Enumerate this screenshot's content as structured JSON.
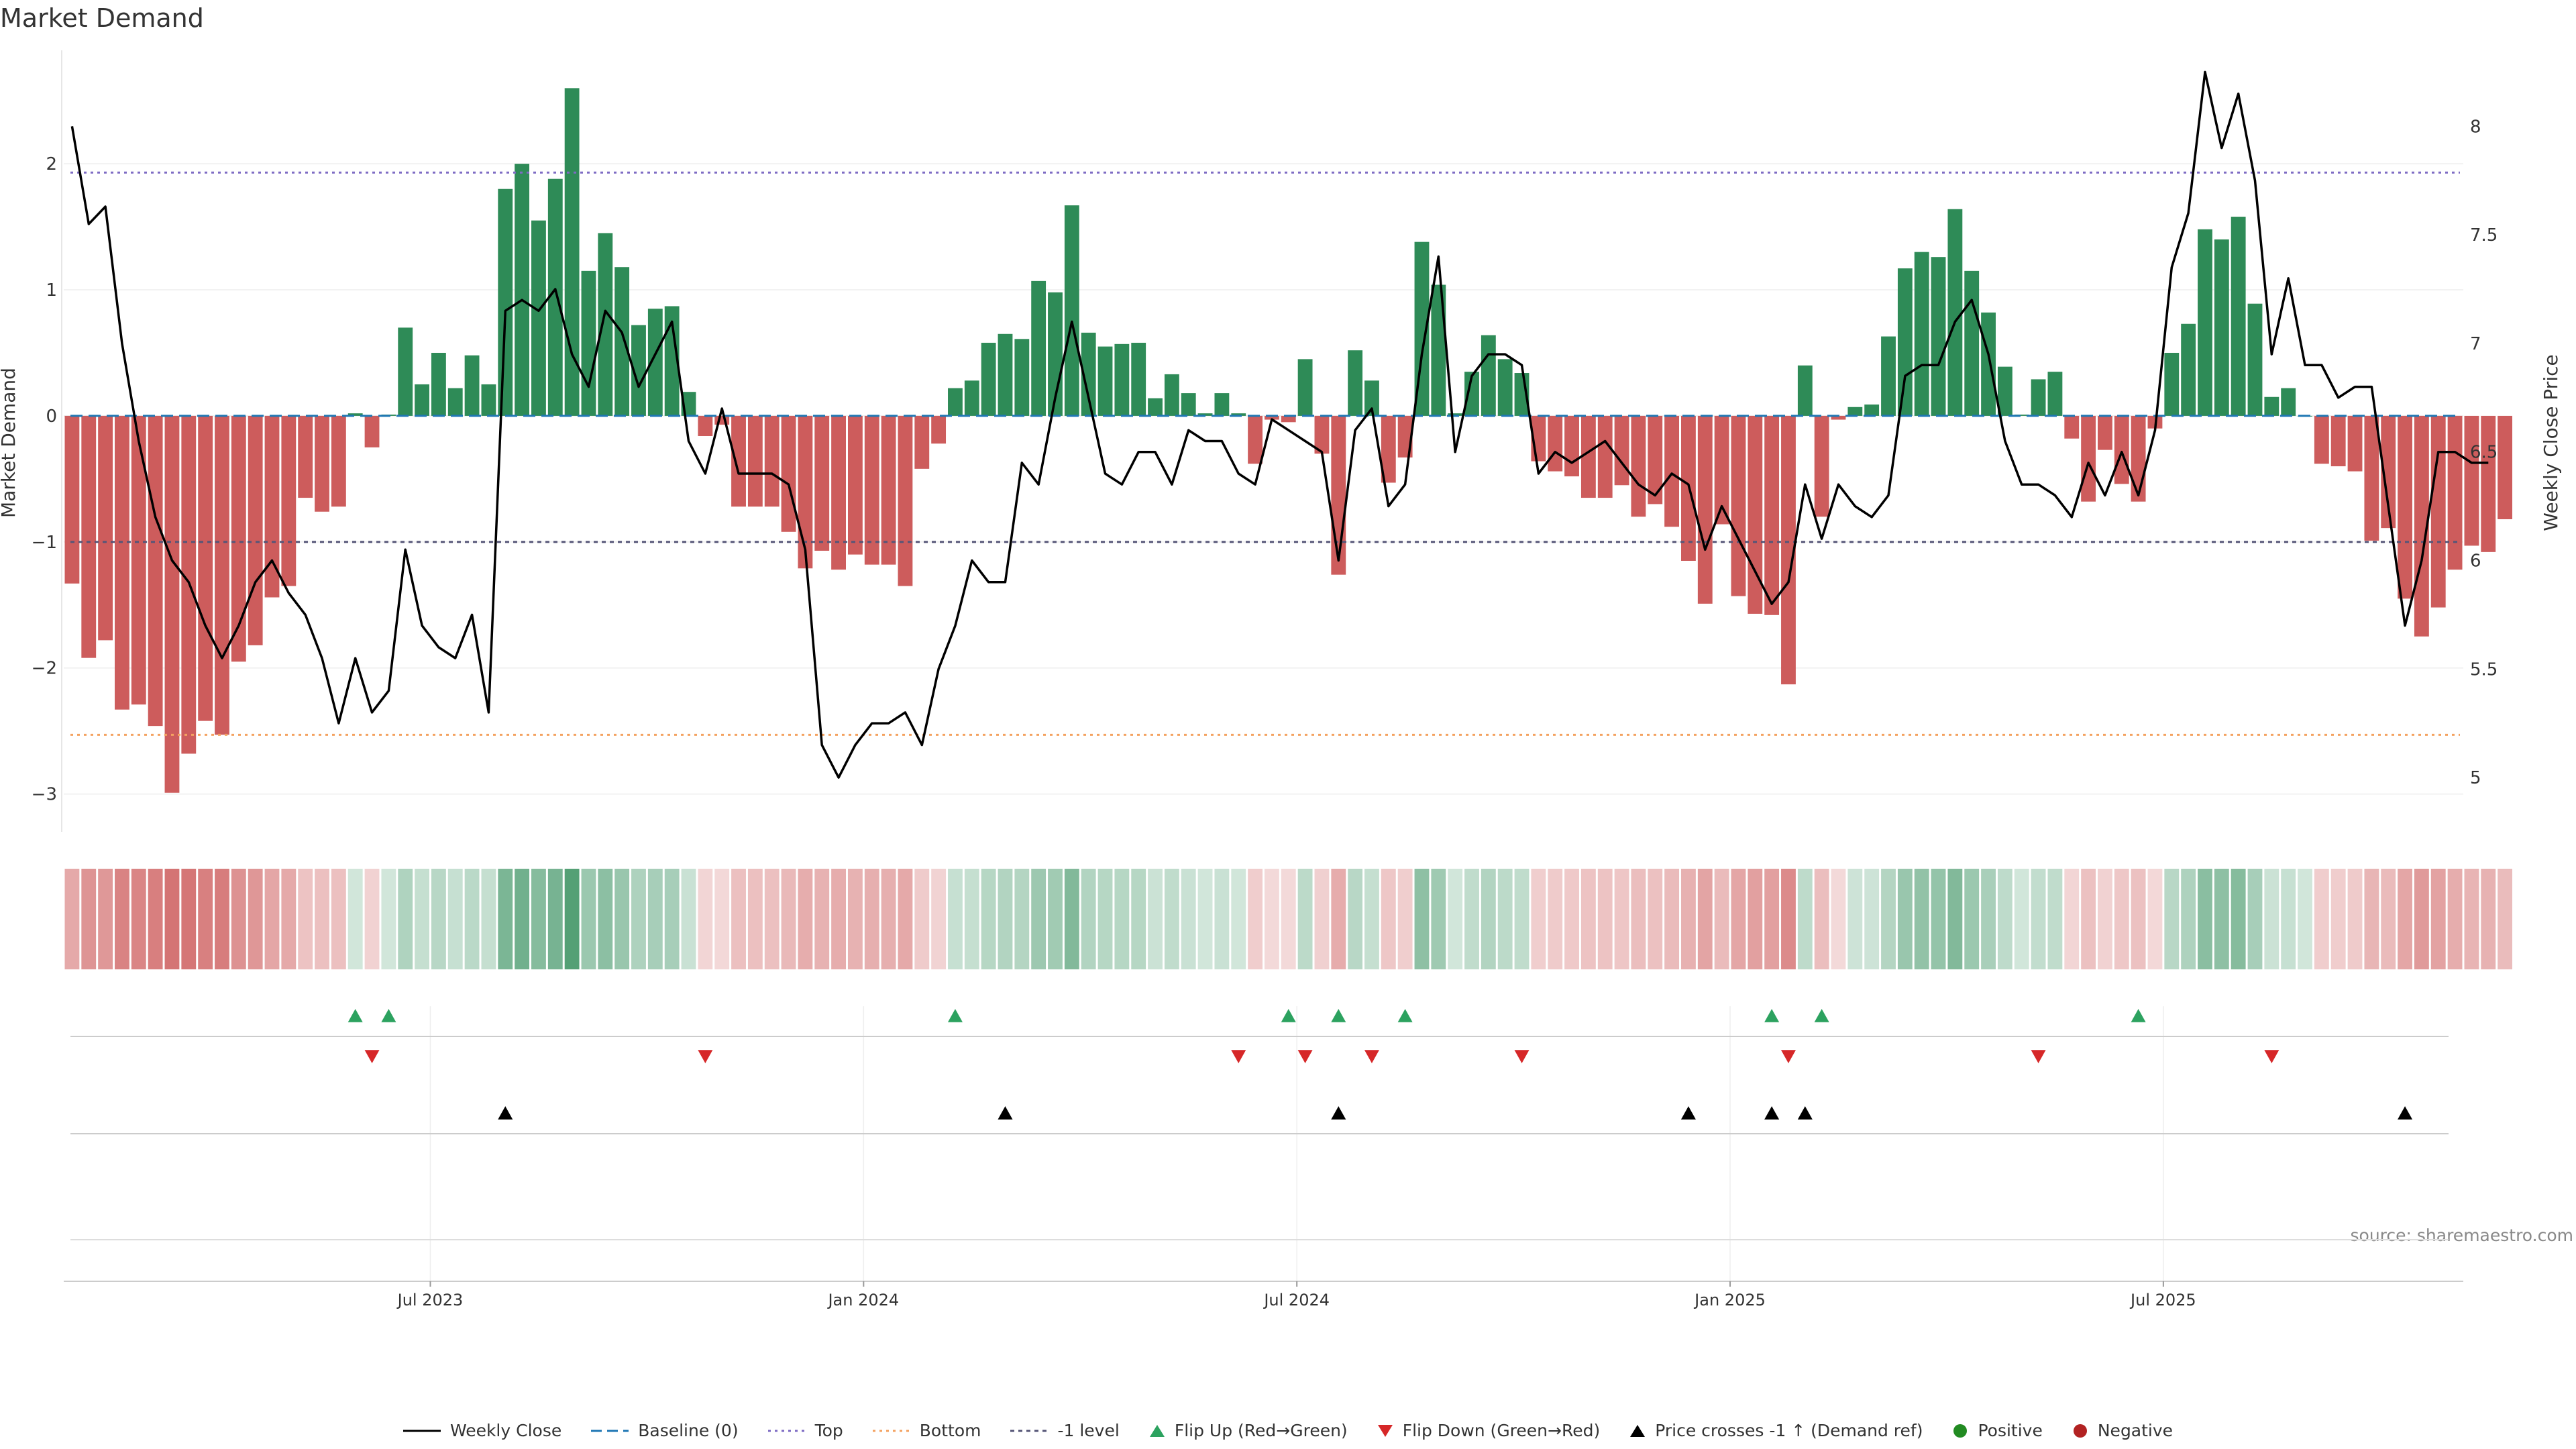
{
  "title": "Market Demand",
  "source": "source: sharemaestro.com",
  "colors": {
    "positive": "#2e8b57",
    "negative": "#cd5c5c",
    "price": "#000000",
    "top": "#7e6bc4",
    "bottom": "#f4a261",
    "minus1": "#555577",
    "baseline": "#1f77b4",
    "flip_up": "#2ca25f",
    "flip_down": "#d62728",
    "cross": "#000000"
  },
  "chart_data": {
    "type": "bar",
    "title": "Market Demand",
    "ylabel": "Market Demand",
    "y2label": "Weekly Close Price",
    "ylim": [
      -3.3,
      2.9
    ],
    "y2lim": [
      4.75,
      8.35
    ],
    "yticks": [
      -3,
      -2,
      -1,
      0,
      1,
      2
    ],
    "yticklabels": [
      "−3",
      "−2",
      "−1",
      "0",
      "1",
      "2"
    ],
    "y2ticks": [
      5,
      5.5,
      6,
      6.5,
      7,
      7.5,
      8
    ],
    "y2ticklabels": [
      "5",
      "5.5",
      "6",
      "6.5",
      "7",
      "7.5",
      "8"
    ],
    "x_tick_weeks": [
      22,
      48,
      74,
      100,
      126
    ],
    "x_tick_labels": [
      "Jul 2023",
      "Jan 2024",
      "Jul 2024",
      "Jan 2025",
      "Jul 2025"
    ],
    "weeks": 144,
    "levels": {
      "top": 1.93,
      "bottom": -2.53,
      "minus_one": -1.0,
      "baseline": 0
    },
    "demand": [
      -1.33,
      -1.92,
      -1.78,
      -2.33,
      -2.29,
      -2.46,
      -2.99,
      -2.68,
      -2.42,
      -2.53,
      -1.95,
      -1.82,
      -1.44,
      -1.35,
      -0.65,
      -0.76,
      -0.72,
      0.02,
      -0.25,
      0.01,
      0.7,
      0.25,
      0.5,
      0.22,
      0.48,
      0.25,
      1.8,
      2.0,
      1.55,
      1.88,
      2.6,
      1.15,
      1.45,
      1.18,
      0.72,
      0.85,
      0.87,
      0.19,
      -0.16,
      -0.07,
      -0.72,
      -0.72,
      -0.72,
      -0.92,
      -1.21,
      -1.07,
      -1.22,
      -1.1,
      -1.18,
      -1.18,
      -1.35,
      -0.42,
      -0.22,
      0.22,
      0.28,
      0.58,
      0.65,
      0.61,
      1.07,
      0.98,
      1.67,
      0.66,
      0.55,
      0.57,
      0.58,
      0.14,
      0.33,
      0.18,
      0.02,
      0.18,
      0.02,
      -0.38,
      -0.03,
      -0.05,
      0.45,
      -0.3,
      -1.26,
      0.52,
      0.28,
      -0.53,
      -0.33,
      1.38,
      1.04,
      0.02,
      0.35,
      0.64,
      0.45,
      0.34,
      -0.36,
      -0.44,
      -0.48,
      -0.65,
      -0.65,
      -0.55,
      -0.8,
      -0.7,
      -0.88,
      -1.15,
      -1.49,
      -0.86,
      -1.43,
      -1.57,
      -1.58,
      -2.13,
      0.4,
      -0.8,
      -0.03,
      0.07,
      0.09,
      0.63,
      1.17,
      1.3,
      1.26,
      1.64,
      1.15,
      0.82,
      0.39,
      0.01,
      0.29,
      0.35,
      -0.18,
      -0.68,
      -0.27,
      -0.54,
      -0.68,
      -0.1,
      0.5,
      0.73,
      1.48,
      1.4,
      1.58,
      0.89,
      0.15,
      0.22,
      0.0,
      -0.38,
      -0.4,
      -0.44,
      -0.99,
      -0.89,
      -1.45,
      -1.75,
      -1.52,
      -1.22,
      -1.03,
      -1.08,
      -0.82
    ],
    "price": [
      8.0,
      7.55,
      7.63,
      7.0,
      6.55,
      6.2,
      6.0,
      5.9,
      5.7,
      5.55,
      5.7,
      5.9,
      6.0,
      5.85,
      5.75,
      5.55,
      5.25,
      5.55,
      5.3,
      5.4,
      6.05,
      5.7,
      5.6,
      5.55,
      5.75,
      5.3,
      7.15,
      7.2,
      7.15,
      7.25,
      6.95,
      6.8,
      7.15,
      7.05,
      6.8,
      6.95,
      7.1,
      6.55,
      6.4,
      6.7,
      6.4,
      6.4,
      6.4,
      6.35,
      6.05,
      5.15,
      5.0,
      5.15,
      5.25,
      5.25,
      5.3,
      5.15,
      5.5,
      5.7,
      6.0,
      5.9,
      5.9,
      6.45,
      6.35,
      6.75,
      7.1,
      6.75,
      6.4,
      6.35,
      6.5,
      6.5,
      6.35,
      6.6,
      6.55,
      6.55,
      6.4,
      6.35,
      6.65,
      6.6,
      6.55,
      6.5,
      6.0,
      6.6,
      6.7,
      6.25,
      6.35,
      6.95,
      7.4,
      6.5,
      6.85,
      6.95,
      6.95,
      6.9,
      6.4,
      6.5,
      6.45,
      6.5,
      6.55,
      6.45,
      6.35,
      6.3,
      6.4,
      6.35,
      6.05,
      6.25,
      6.1,
      5.95,
      5.8,
      5.9,
      6.35,
      6.1,
      6.35,
      6.25,
      6.2,
      6.3,
      6.85,
      6.9,
      6.9,
      7.1,
      7.2,
      6.95,
      6.55,
      6.35,
      6.35,
      6.3,
      6.2,
      6.45,
      6.3,
      6.5,
      6.3,
      6.6,
      7.35,
      7.6,
      8.25,
      7.9,
      8.15,
      7.75,
      6.95,
      7.3,
      6.9,
      6.9,
      6.75,
      6.8,
      6.8,
      6.25,
      5.7,
      6.0,
      6.5,
      6.5,
      6.45,
      6.45
    ],
    "flip_up": [
      17,
      19,
      53,
      73,
      76,
      80,
      102,
      105,
      124
    ],
    "flip_down": [
      18,
      38,
      70,
      74,
      78,
      87,
      103,
      118,
      132
    ],
    "price_crosses": [
      26,
      56,
      76,
      97,
      102,
      104,
      140
    ],
    "legend": [
      {
        "label": "Weekly Close",
        "style": "line-black"
      },
      {
        "label": "Baseline (0)",
        "style": "dash-blue"
      },
      {
        "label": "Top",
        "style": "dot-purple"
      },
      {
        "label": "Bottom",
        "style": "dot-orange"
      },
      {
        "label": "-1 level",
        "style": "dash-gray"
      },
      {
        "label": "Flip Up (Red→Green)",
        "style": "tri-up-green"
      },
      {
        "label": "Flip Down (Green→Red)",
        "style": "tri-down-red"
      },
      {
        "label": "Price crosses -1 ↑ (Demand ref)",
        "style": "tri-up-black"
      },
      {
        "label": "Positive",
        "style": "dot-green"
      },
      {
        "label": "Negative",
        "style": "dot-red"
      }
    ]
  }
}
